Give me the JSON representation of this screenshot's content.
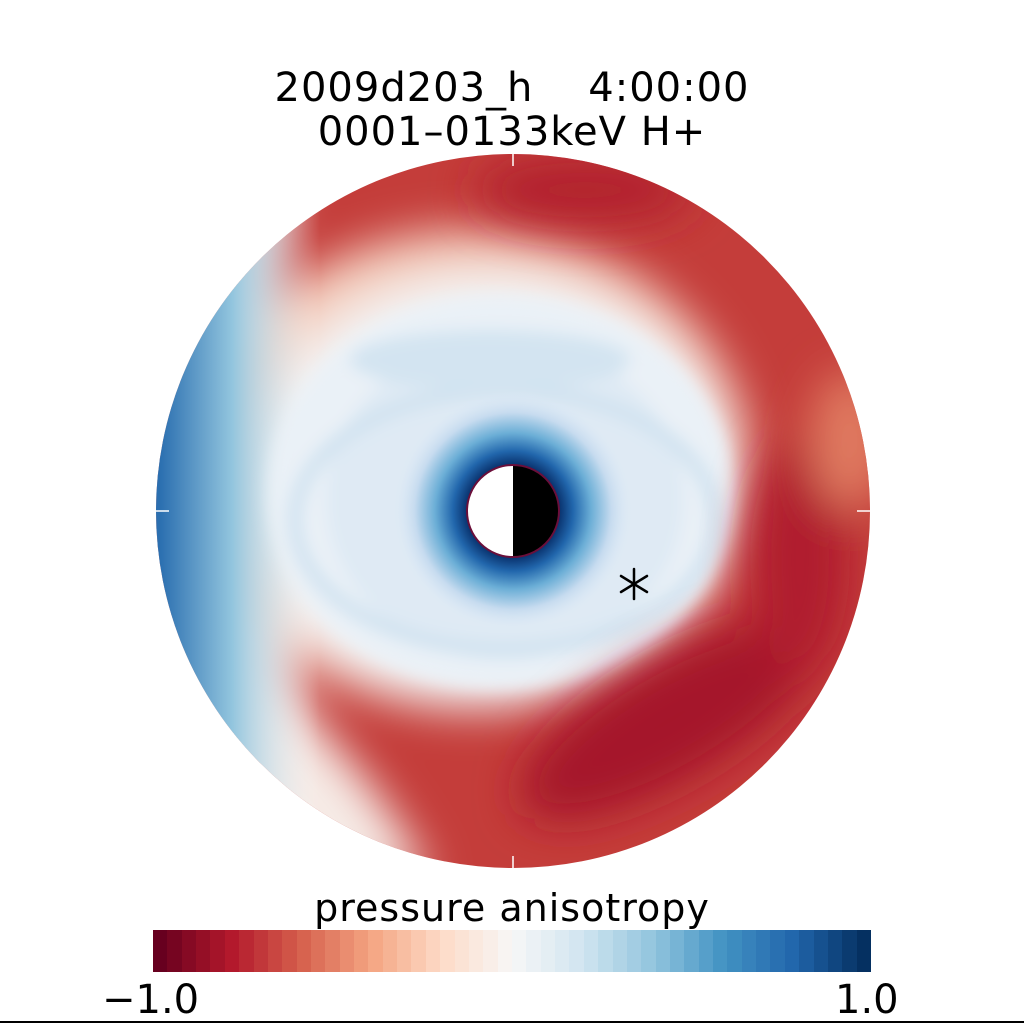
{
  "chart_data": {
    "type": "heatmap",
    "projection": "polar",
    "title": "2009d203_h    4:00:00",
    "subtitle": "0001–0133keV H+",
    "colorbar": {
      "label": "pressure anisotropy",
      "min_label": "−1.0",
      "max_label": "1.0",
      "range": [
        -1.0,
        1.0
      ],
      "colormap": "red-white-blue",
      "colors": [
        "#67001f",
        "#b2182b",
        "#d6604d",
        "#f4a582",
        "#fddbc7",
        "#f7f7f7",
        "#d1e5f0",
        "#92c5de",
        "#4393c3",
        "#2166ac",
        "#053061"
      ]
    },
    "earth": {
      "day_side": "left",
      "night_side": "right"
    },
    "marker": {
      "symbol": "asterisk"
    }
  }
}
